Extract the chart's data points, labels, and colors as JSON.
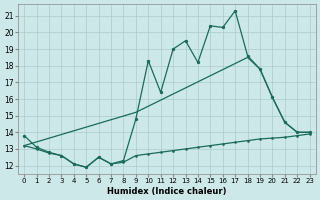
{
  "background_color": "#cce8e8",
  "grid_color": "#aacccc",
  "line_color": "#1a6b5a",
  "xlabel": "Humidex (Indice chaleur)",
  "xlim": [
    -0.5,
    23.5
  ],
  "ylim": [
    11.5,
    21.7
  ],
  "xticks": [
    0,
    1,
    2,
    3,
    4,
    5,
    6,
    7,
    8,
    9,
    10,
    11,
    12,
    13,
    14,
    15,
    16,
    17,
    18,
    19,
    20,
    21,
    22,
    23
  ],
  "yticks": [
    12,
    13,
    14,
    15,
    16,
    17,
    18,
    19,
    20,
    21
  ],
  "curve_main_x": [
    0,
    1,
    2,
    3,
    4,
    5,
    6,
    7,
    8,
    9,
    10,
    11,
    12,
    13,
    14,
    15,
    16,
    17,
    18,
    19,
    20,
    21,
    22,
    23
  ],
  "curve_main_y": [
    13.8,
    13.1,
    12.8,
    12.6,
    12.1,
    11.9,
    12.5,
    12.1,
    12.3,
    14.8,
    18.3,
    16.4,
    19.0,
    19.5,
    18.2,
    20.4,
    20.3,
    21.3,
    18.6,
    17.8,
    16.1,
    14.6,
    14.0,
    14.0
  ],
  "curve_diag_x": [
    0,
    9,
    18,
    19,
    20,
    21,
    22,
    23
  ],
  "curve_diag_y": [
    13.2,
    15.2,
    18.5,
    17.8,
    16.1,
    14.6,
    14.0,
    14.0
  ],
  "curve_flat_x": [
    0,
    1,
    2,
    3,
    4,
    5,
    6,
    7,
    8,
    9,
    10,
    11,
    12,
    13,
    14,
    15,
    16,
    17,
    18,
    19,
    20,
    21,
    22,
    23
  ],
  "curve_flat_y": [
    13.2,
    13.0,
    12.75,
    12.6,
    12.1,
    11.9,
    12.5,
    12.1,
    12.2,
    12.6,
    12.7,
    12.8,
    12.9,
    13.0,
    13.1,
    13.2,
    13.3,
    13.4,
    13.5,
    13.6,
    13.65,
    13.7,
    13.8,
    13.9
  ]
}
